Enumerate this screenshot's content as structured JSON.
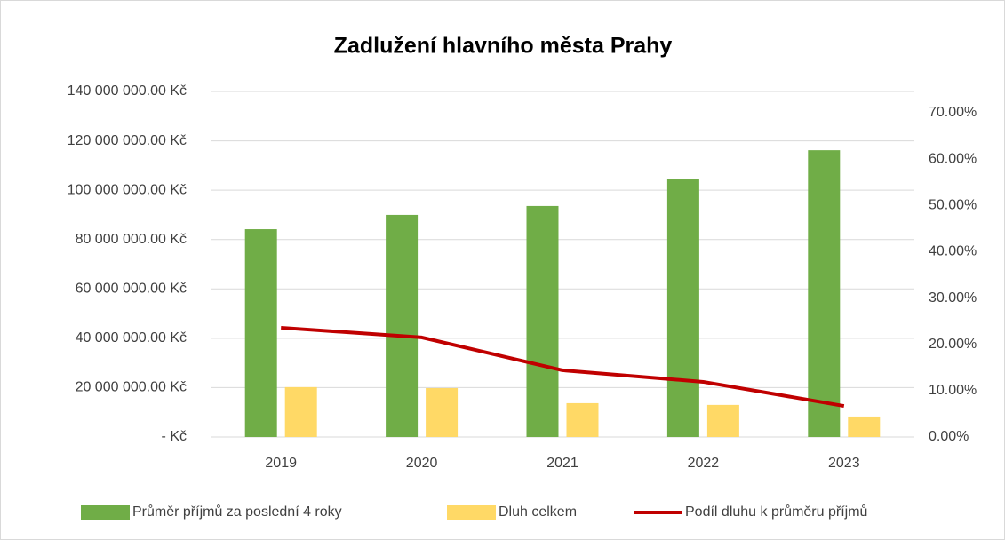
{
  "chart_data": {
    "type": "combo",
    "title": "Zadlužení hlavního města Prahy",
    "categories": [
      "2019",
      "2020",
      "2021",
      "2022",
      "2023"
    ],
    "series": [
      {
        "name": "Průměr příjmů za poslední 4 roky",
        "type": "bar",
        "color": "#70ad47",
        "values": [
          84200000,
          90000000,
          93600000,
          104700000,
          116200000
        ]
      },
      {
        "name": "Dluh celkem",
        "type": "bar",
        "color": "#ffd966",
        "values": [
          20200000,
          19800000,
          13700000,
          13000000,
          8300000
        ]
      },
      {
        "name": "Podíl dluhu k průměru příjmů",
        "type": "line",
        "axis": "y2",
        "color": "#c00000",
        "values": [
          23.6,
          21.5,
          14.4,
          11.9,
          6.7
        ]
      }
    ],
    "ylim": [
      0,
      140000000
    ],
    "yticks": [
      {
        "value": 0,
        "label": "-   Kč"
      },
      {
        "value": 20000000,
        "label": "20 000 000.00 Kč"
      },
      {
        "value": 40000000,
        "label": "40 000 000.00 Kč"
      },
      {
        "value": 60000000,
        "label": "60 000 000.00 Kč"
      },
      {
        "value": 80000000,
        "label": "80 000 000.00 Kč"
      },
      {
        "value": 100000000,
        "label": "100 000 000.00 Kč"
      },
      {
        "value": 120000000,
        "label": "120 000 000.00 Kč"
      },
      {
        "value": 140000000,
        "label": "140 000 000.00 Kč"
      }
    ],
    "y2lim": [
      0,
      74.6
    ],
    "y2ticks": [
      {
        "value": 0,
        "label": "0.00%"
      },
      {
        "value": 10,
        "label": "10.00%"
      },
      {
        "value": 20,
        "label": "20.00%"
      },
      {
        "value": 30,
        "label": "30.00%"
      },
      {
        "value": 40,
        "label": "40.00%"
      },
      {
        "value": 50,
        "label": "50.00%"
      },
      {
        "value": 60,
        "label": "60.00%"
      },
      {
        "value": 70,
        "label": "70.00%"
      }
    ],
    "grid": true,
    "legend": "bottom"
  }
}
